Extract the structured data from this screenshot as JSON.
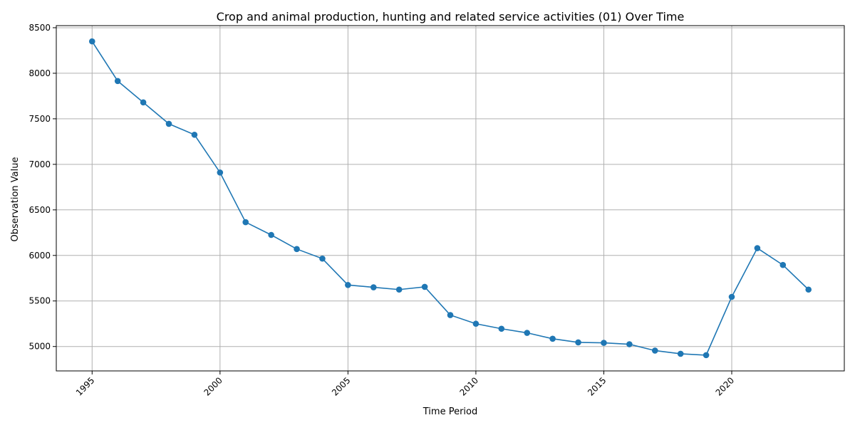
{
  "chart_data": {
    "type": "line",
    "title": "Crop and animal production, hunting and related service activities (01) Over Time",
    "xlabel": "Time Period",
    "ylabel": "Observation Value",
    "x": [
      1995,
      1996,
      1997,
      1998,
      1999,
      2000,
      2001,
      2002,
      2003,
      2004,
      2005,
      2006,
      2007,
      2008,
      2009,
      2010,
      2011,
      2012,
      2013,
      2014,
      2015,
      2016,
      2017,
      2018,
      2019,
      2020,
      2021,
      2022,
      2023
    ],
    "series": [
      {
        "values": [
          8350,
          7915,
          7680,
          7445,
          7325,
          6910,
          6365,
          6225,
          6070,
          5965,
          5675,
          5650,
          5625,
          5655,
          5345,
          5250,
          5195,
          5150,
          5085,
          5045,
          5040,
          5025,
          4955,
          4920,
          4905,
          5545,
          6080,
          5895,
          5625
        ],
        "color": "#1f77b4"
      }
    ],
    "xticks": [
      "1995",
      "2000",
      "2005",
      "2010",
      "2015",
      "2020"
    ],
    "yticks": [
      "5000",
      "5500",
      "6000",
      "6500",
      "7000",
      "7500",
      "8000",
      "8500"
    ],
    "xlim": [
      1993.6,
      2024.4
    ],
    "ylim": [
      4732,
      8523
    ],
    "grid": true,
    "legend": "none",
    "marker": "circle"
  }
}
